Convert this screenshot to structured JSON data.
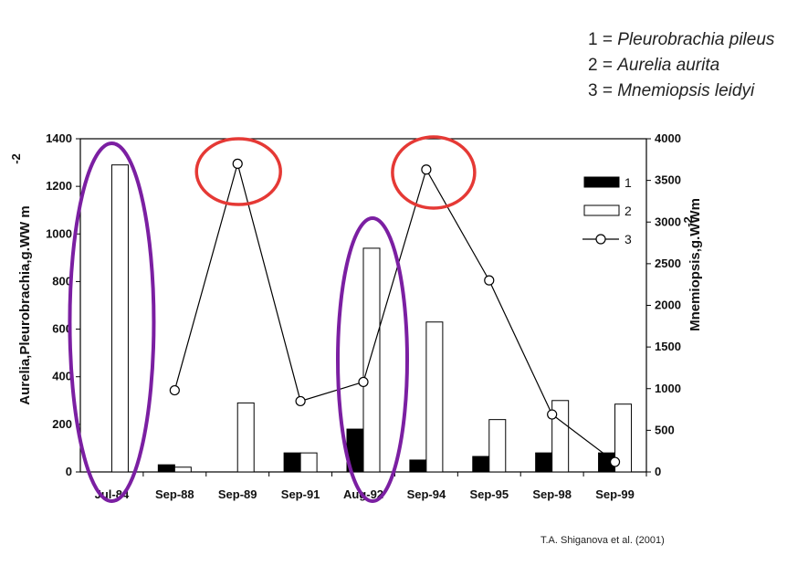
{
  "species_list": [
    {
      "prefix": "1 = ",
      "name": "Pleurobrachia pileus"
    },
    {
      "prefix": "2 = ",
      "name": "Aurelia aurita"
    },
    {
      "prefix": "3 = ",
      "name": "Mnemiopsis leidyi"
    }
  ],
  "citation": "T.A. Shiganova et al. (2001)",
  "chart_data": {
    "type": "bar",
    "categories": [
      "Jul-84",
      "Sep-88",
      "Sep-89",
      "Sep-91",
      "Aug-92",
      "Sep-94",
      "Sep-95",
      "Sep-98",
      "Sep-99"
    ],
    "ylabel_left": "Aurelia,Pleurobrachia,g.WW m",
    "ylabel_left_superscript": "-2",
    "ylabel_right": "Mnemiopsis,g.WWm",
    "ylabel_right_superscript": "-2",
    "ylim_left": [
      0,
      1400
    ],
    "yticks_left": [
      0,
      200,
      400,
      600,
      800,
      1000,
      1200,
      1400
    ],
    "ylim_right": [
      0,
      4000
    ],
    "yticks_right": [
      0,
      500,
      1000,
      1500,
      2000,
      2500,
      3000,
      3500,
      4000
    ],
    "grid": false,
    "legend_position": "top-right",
    "series": [
      {
        "name": "1",
        "kind": "bar",
        "axis": "left",
        "fill": "#000000",
        "values": [
          0,
          30,
          0,
          80,
          180,
          50,
          65,
          80,
          80
        ]
      },
      {
        "name": "2",
        "kind": "bar",
        "axis": "left",
        "fill": "#ffffff",
        "values": [
          1290,
          20,
          290,
          80,
          940,
          630,
          220,
          300,
          285
        ]
      },
      {
        "name": "3",
        "kind": "line",
        "axis": "right",
        "marker": "open-circle",
        "values": [
          null,
          980,
          3700,
          850,
          1080,
          3630,
          2300,
          690,
          120
        ]
      }
    ],
    "highlights": [
      {
        "shape": "ellipse",
        "color": "#7b1fa2",
        "category": "Jul-84"
      },
      {
        "shape": "ellipse",
        "color": "#7b1fa2",
        "category": "Aug-92"
      },
      {
        "shape": "circle",
        "color": "#e53935",
        "category": "Sep-89"
      },
      {
        "shape": "circle",
        "color": "#e53935",
        "category": "Sep-94"
      }
    ]
  }
}
